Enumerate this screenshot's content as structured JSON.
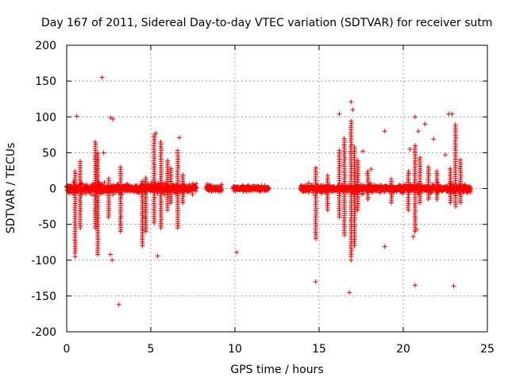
{
  "chart_data": {
    "type": "scatter",
    "title": "Day 167 of 2011, Sidereal Day-to-day VTEC variation (SDTVAR) for receiver sutm",
    "xlabel": "GPS time / hours",
    "ylabel": "SDTVAR / TECUs",
    "xlim": [
      0,
      25
    ],
    "ylim": [
      -200,
      200
    ],
    "xticks": [
      0,
      5,
      10,
      15,
      20,
      25
    ],
    "xtick_labels": [
      "0",
      "5",
      "10",
      "15",
      "20",
      "25"
    ],
    "yticks": [
      200,
      150,
      100,
      50,
      0,
      -50,
      -100,
      -150,
      -200
    ],
    "ytick_labels": [
      "200",
      "150",
      "100",
      "50",
      "0",
      "-50",
      "-100",
      "-150",
      "-200"
    ],
    "grid": true,
    "marker": "+",
    "series_color": "#ff0000",
    "outliers": [
      {
        "x": 0.6,
        "y": 101
      },
      {
        "x": 2.1,
        "y": 155
      },
      {
        "x": 2.6,
        "y": 99
      },
      {
        "x": 2.75,
        "y": 97
      },
      {
        "x": 2.2,
        "y": 50
      },
      {
        "x": 3.1,
        "y": -162
      },
      {
        "x": 2.7,
        "y": -100
      },
      {
        "x": 2.6,
        "y": -92
      },
      {
        "x": 0.5,
        "y": -95
      },
      {
        "x": 5.3,
        "y": 77
      },
      {
        "x": 5.4,
        "y": -94
      },
      {
        "x": 6.7,
        "y": 71
      },
      {
        "x": 10.1,
        "y": -89
      },
      {
        "x": 14.8,
        "y": -130
      },
      {
        "x": 16.9,
        "y": 121
      },
      {
        "x": 16.2,
        "y": 104
      },
      {
        "x": 17.0,
        "y": 110
      },
      {
        "x": 16.8,
        "y": -145
      },
      {
        "x": 16.9,
        "y": -100
      },
      {
        "x": 17.6,
        "y": 52
      },
      {
        "x": 18.1,
        "y": 27
      },
      {
        "x": 18.9,
        "y": -81
      },
      {
        "x": 18.9,
        "y": 80
      },
      {
        "x": 20.7,
        "y": 100
      },
      {
        "x": 20.9,
        "y": 80
      },
      {
        "x": 20.7,
        "y": -135
      },
      {
        "x": 20.8,
        "y": -57
      },
      {
        "x": 20.6,
        "y": -67
      },
      {
        "x": 21.3,
        "y": 90
      },
      {
        "x": 21.8,
        "y": 69
      },
      {
        "x": 22.7,
        "y": 104
      },
      {
        "x": 22.9,
        "y": 104
      },
      {
        "x": 23.0,
        "y": -136
      },
      {
        "x": 22.5,
        "y": 47
      },
      {
        "x": 20.4,
        "y": 55
      }
    ],
    "dense_segments": [
      {
        "x_start": 0.0,
        "x_end": 7.7,
        "y_spread": 12
      },
      {
        "x_start": 8.3,
        "x_end": 9.2,
        "y_spread": 9
      },
      {
        "x_start": 9.9,
        "x_end": 12.0,
        "y_spread": 7
      },
      {
        "x_start": 13.9,
        "x_end": 24.0,
        "y_spread": 10
      }
    ],
    "spikes": [
      {
        "x": 0.5,
        "top": 25,
        "bottom": -90
      },
      {
        "x": 0.8,
        "top": 40,
        "bottom": -55
      },
      {
        "x": 1.7,
        "top": 65,
        "bottom": -55
      },
      {
        "x": 1.85,
        "top": 50,
        "bottom": -92
      },
      {
        "x": 2.5,
        "top": 15,
        "bottom": -40
      },
      {
        "x": 3.2,
        "top": 30,
        "bottom": -60
      },
      {
        "x": 4.5,
        "top": 10,
        "bottom": -80
      },
      {
        "x": 4.7,
        "top": 15,
        "bottom": -60
      },
      {
        "x": 5.2,
        "top": 75,
        "bottom": -48
      },
      {
        "x": 5.6,
        "top": 65,
        "bottom": -55
      },
      {
        "x": 6.0,
        "top": 40,
        "bottom": -30
      },
      {
        "x": 6.2,
        "top": 30,
        "bottom": -20
      },
      {
        "x": 6.6,
        "top": 55,
        "bottom": -55
      },
      {
        "x": 6.9,
        "top": 20,
        "bottom": -20
      },
      {
        "x": 14.8,
        "top": 30,
        "bottom": -70
      },
      {
        "x": 15.5,
        "top": 20,
        "bottom": -30
      },
      {
        "x": 16.2,
        "top": 55,
        "bottom": -40
      },
      {
        "x": 16.5,
        "top": 70,
        "bottom": -65
      },
      {
        "x": 16.9,
        "top": 95,
        "bottom": -95
      },
      {
        "x": 17.1,
        "top": 60,
        "bottom": -80
      },
      {
        "x": 17.3,
        "top": 40,
        "bottom": -30
      },
      {
        "x": 17.9,
        "top": 25,
        "bottom": -15
      },
      {
        "x": 19.3,
        "top": 15,
        "bottom": -20
      },
      {
        "x": 20.3,
        "top": 25,
        "bottom": -30
      },
      {
        "x": 20.7,
        "top": 60,
        "bottom": -60
      },
      {
        "x": 21.0,
        "top": 45,
        "bottom": -20
      },
      {
        "x": 21.5,
        "top": 30,
        "bottom": -15
      },
      {
        "x": 22.0,
        "top": 25,
        "bottom": -15
      },
      {
        "x": 22.8,
        "top": 30,
        "bottom": -20
      },
      {
        "x": 23.1,
        "top": 90,
        "bottom": -25
      },
      {
        "x": 23.4,
        "top": 40,
        "bottom": -20
      }
    ]
  }
}
